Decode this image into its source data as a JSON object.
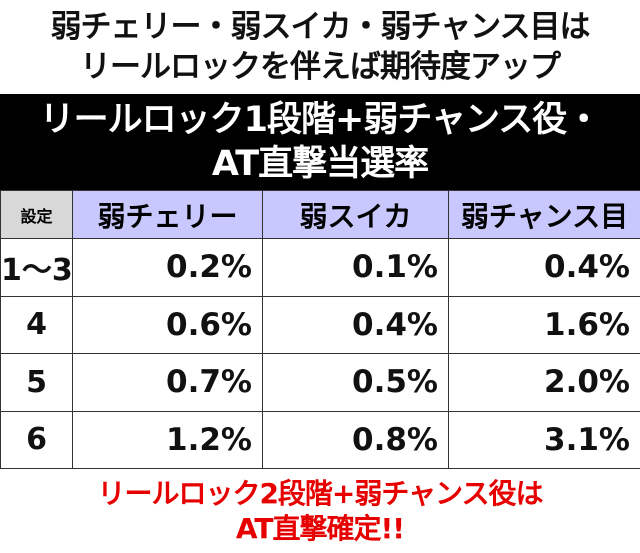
{
  "heading": {
    "lines": [
      "弱チェリー・弱スイカ・弱チャンス目は",
      "リールロックを伴えば期待度アップ"
    ]
  },
  "table": {
    "title": [
      "リールロック1段階+弱チャンス役・",
      "AT直撃当選率"
    ],
    "header": [
      "設定",
      "弱チェリー",
      "弱スイカ",
      "弱チャンス目"
    ],
    "rows": [
      [
        "1～3",
        "0.2%",
        "0.1%",
        "0.4%"
      ],
      [
        "4",
        "0.6%",
        "0.4%",
        "1.6%"
      ],
      [
        "5",
        "0.7%",
        "0.5%",
        "2.0%"
      ],
      [
        "6",
        "1.2%",
        "0.8%",
        "3.1%"
      ]
    ]
  },
  "footer": {
    "lines": [
      "リールロック2段階+弱チャンス役は",
      "AT直撃確定!!"
    ]
  }
}
